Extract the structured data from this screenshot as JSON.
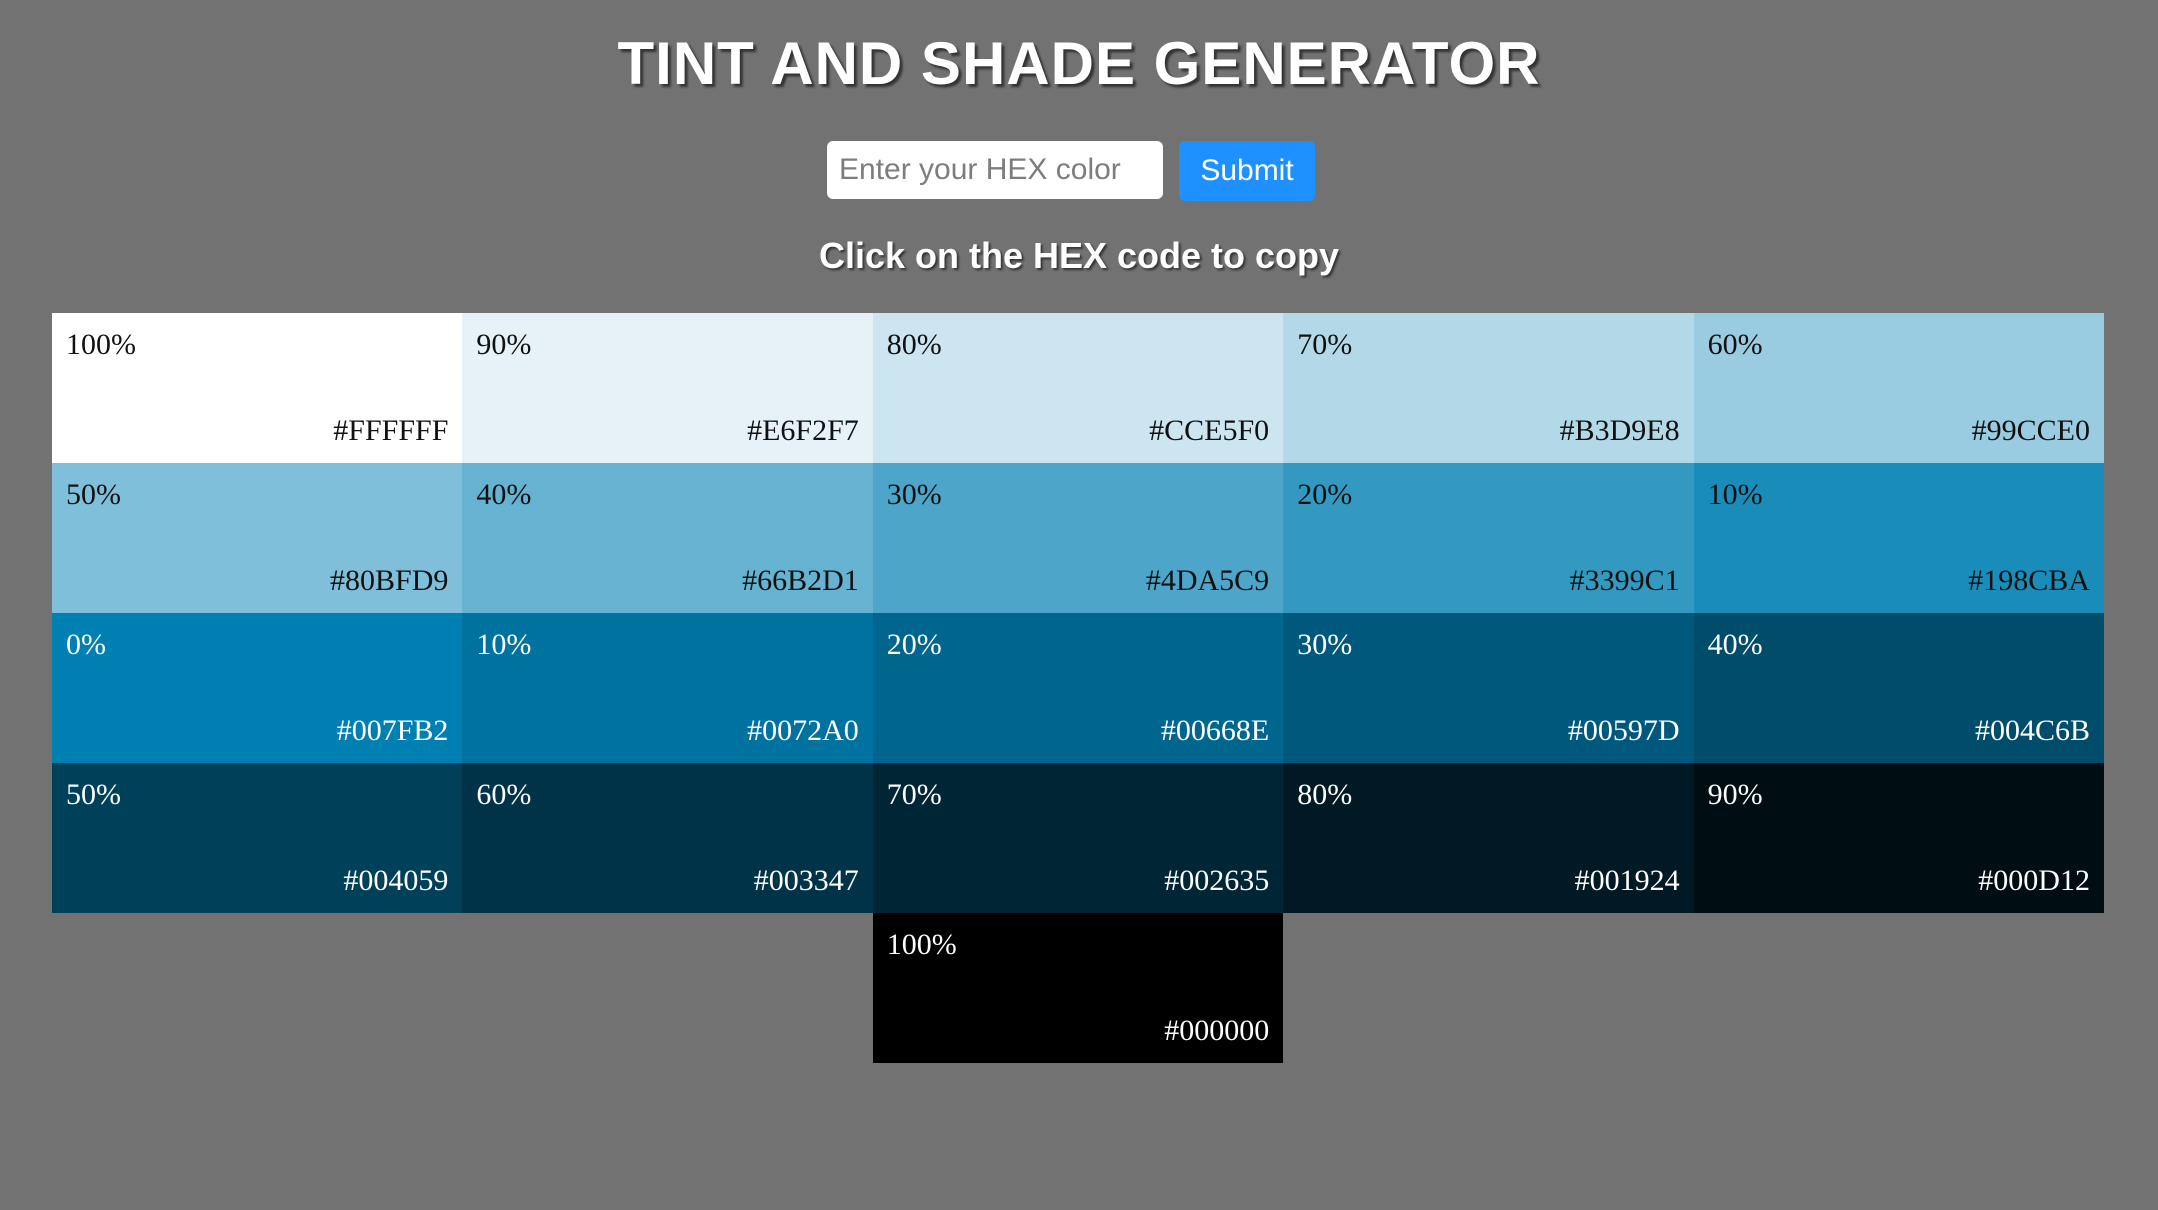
{
  "header": {
    "title": "TINT AND SHADE GENERATOR",
    "subtitle": "Click on the HEX code to copy"
  },
  "form": {
    "input_placeholder": "Enter your HEX color",
    "input_value": "",
    "submit_label": "Submit"
  },
  "swatches": [
    {
      "percent": "100%",
      "hex": "#FFFFFF",
      "color": "#FFFFFF",
      "text_color": "#111111"
    },
    {
      "percent": "90%",
      "hex": "#E6F2F7",
      "color": "#E6F2F7",
      "text_color": "#111111"
    },
    {
      "percent": "80%",
      "hex": "#CCE5F0",
      "color": "#CCE5F0",
      "text_color": "#111111"
    },
    {
      "percent": "70%",
      "hex": "#B3D9E8",
      "color": "#B3D9E8",
      "text_color": "#111111"
    },
    {
      "percent": "60%",
      "hex": "#99CCE0",
      "color": "#99CCE0",
      "text_color": "#111111"
    },
    {
      "percent": "50%",
      "hex": "#80BFD9",
      "color": "#80BFD9",
      "text_color": "#111111"
    },
    {
      "percent": "40%",
      "hex": "#66B2D1",
      "color": "#66B2D1",
      "text_color": "#111111"
    },
    {
      "percent": "30%",
      "hex": "#4DA5C9",
      "color": "#4DA5C9",
      "text_color": "#111111"
    },
    {
      "percent": "20%",
      "hex": "#3399C1",
      "color": "#3399C1",
      "text_color": "#111111"
    },
    {
      "percent": "10%",
      "hex": "#198CBA",
      "color": "#198CBA",
      "text_color": "#111111"
    },
    {
      "percent": "0%",
      "hex": "#007FB2",
      "color": "#007FB2",
      "text_color": "#FFFFFF"
    },
    {
      "percent": "10%",
      "hex": "#0072A0",
      "color": "#0072A0",
      "text_color": "#FFFFFF"
    },
    {
      "percent": "20%",
      "hex": "#00668E",
      "color": "#00668E",
      "text_color": "#FFFFFF"
    },
    {
      "percent": "30%",
      "hex": "#00597D",
      "color": "#00597D",
      "text_color": "#FFFFFF"
    },
    {
      "percent": "40%",
      "hex": "#004C6B",
      "color": "#004C6B",
      "text_color": "#FFFFFF"
    },
    {
      "percent": "50%",
      "hex": "#004059",
      "color": "#004059",
      "text_color": "#FFFFFF"
    },
    {
      "percent": "60%",
      "hex": "#003347",
      "color": "#003347",
      "text_color": "#FFFFFF"
    },
    {
      "percent": "70%",
      "hex": "#002635",
      "color": "#002635",
      "text_color": "#FFFFFF"
    },
    {
      "percent": "80%",
      "hex": "#001924",
      "color": "#001924",
      "text_color": "#FFFFFF"
    },
    {
      "percent": "90%",
      "hex": "#000D12",
      "color": "#000D12",
      "text_color": "#FFFFFF"
    },
    {
      "percent": "100%",
      "hex": "#000000",
      "color": "#000000",
      "text_color": "#FFFFFF"
    }
  ]
}
